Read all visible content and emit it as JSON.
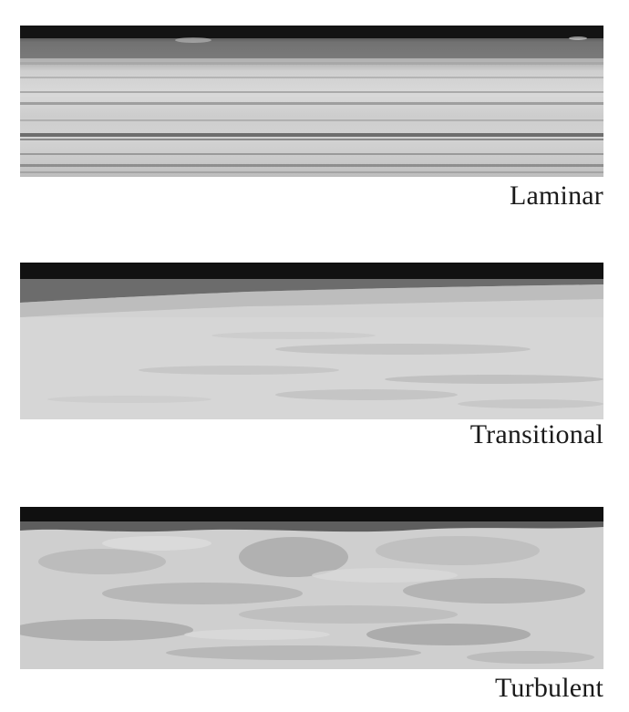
{
  "panels": [
    {
      "label": "Laminar"
    },
    {
      "label": "Transitional"
    },
    {
      "label": "Turbulent"
    }
  ]
}
